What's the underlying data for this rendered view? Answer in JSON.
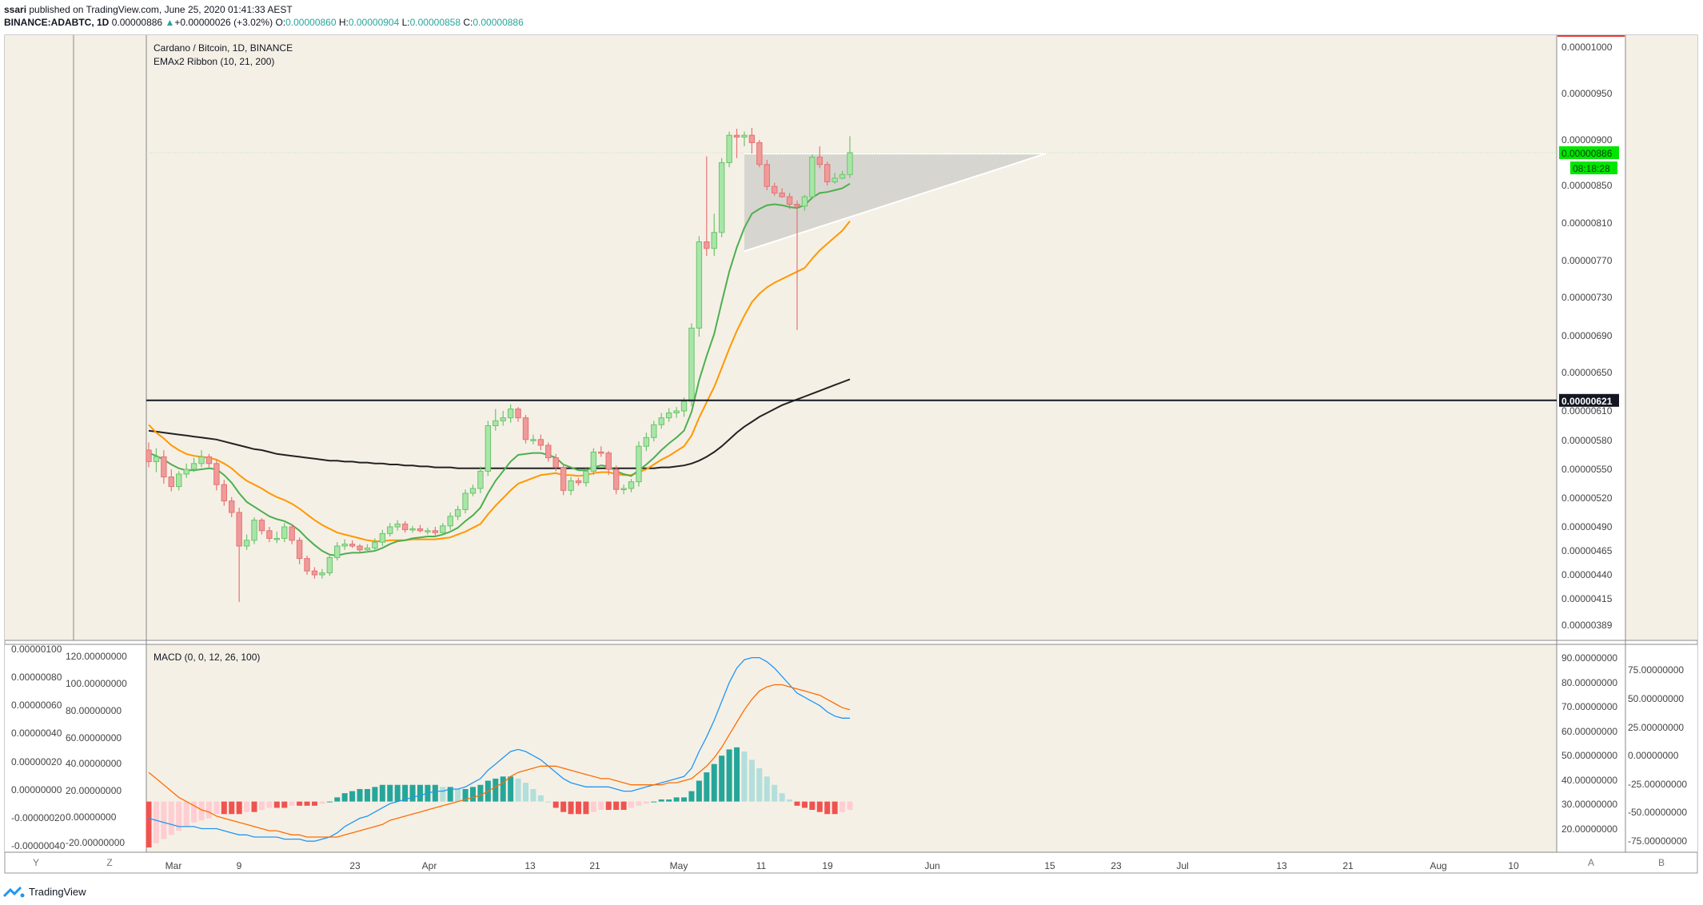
{
  "header": {
    "publisher": "ssari",
    "published_line": " published on TradingView.com, June 25, 2020 01:41:33 AEST",
    "symbol": "BINANCE:ADABTC, 1D",
    "last": "0.00000886",
    "change": "+0.00000026 (+3.02%)",
    "o_label": "O:",
    "o": "0.00000860",
    "h_label": "H:",
    "h": "0.00000904",
    "l_label": "L:",
    "l": "0.00000858",
    "c_label": "C:",
    "c": "0.00000886"
  },
  "legend": {
    "title": "Cardano / Bitcoin, 1D, BINANCE",
    "indicator": "EMAx2 Ribbon (10, 21, 200)",
    "macd": "MACD (0, 0, 12, 26, 100)"
  },
  "scale_buttons": {
    "y": "Y",
    "z": "Z",
    "a": "A",
    "b": "B"
  },
  "price_tags": {
    "last": "0.00000886",
    "countdown": "08:18:28",
    "level": "0.00000621"
  },
  "footer": {
    "brand": "TradingView"
  },
  "colors": {
    "up": "#26a69a",
    "down": "#ef5350",
    "ema10": "#4caf50",
    "ema21": "#ff9800",
    "ema200": "#222222",
    "macd": "#2196f3",
    "signal": "#ff6d00",
    "hist_up_strong": "#26a69a",
    "hist_up_weak": "#b2dfdb",
    "hist_down_strong": "#ef5350",
    "hist_down_weak": "#ffcdd2",
    "pane_bg": "#f5f0e6"
  },
  "chart_data": {
    "type": "candlestick",
    "x_ticks": [
      "Mar",
      "9",
      "23",
      "Apr",
      "13",
      "21",
      "May",
      "11",
      "19",
      "Jun",
      "15",
      "23",
      "Jul",
      "13",
      "21",
      "Aug",
      "10"
    ],
    "price_axis": {
      "ticks": [
        "0.00001000",
        "0.00000950",
        "0.00000900",
        "0.00000850",
        "0.00000810",
        "0.00000770",
        "0.00000730",
        "0.00000690",
        "0.00000650",
        "0.00000610",
        "0.00000580",
        "0.00000550",
        "0.00000520",
        "0.00000490",
        "0.00000465",
        "0.00000440",
        "0.00000415",
        "0.00000389"
      ],
      "range": [
        3.75e-06,
        1.01e-05
      ]
    },
    "left_axis_main": {
      "ticks": []
    },
    "candles": {
      "open": [
        570,
        558,
        563,
        542,
        532,
        545,
        550,
        556,
        563,
        556,
        534,
        517,
        505,
        470,
        476,
        497,
        486,
        478,
        478,
        490,
        476,
        457,
        444,
        440,
        442,
        458,
        470,
        472,
        470,
        466,
        468,
        474,
        483,
        490,
        493,
        487,
        488,
        486,
        486,
        484,
        491,
        501,
        508,
        525,
        530,
        548,
        595,
        600,
        603,
        612,
        603,
        581,
        581,
        575,
        562,
        552,
        528,
        538,
        536,
        548,
        568,
        567,
        550,
        529,
        530,
        537,
        574,
        583,
        596,
        603,
        608,
        610,
        620,
        698,
        790,
        783,
        800,
        875,
        905,
        903,
        905,
        897,
        873,
        849,
        842,
        838,
        830,
        828,
        838,
        881,
        873,
        854,
        858,
        862
      ],
      "close": [
        558,
        563,
        542,
        532,
        545,
        550,
        556,
        563,
        556,
        534,
        517,
        505,
        470,
        476,
        497,
        486,
        478,
        478,
        490,
        476,
        457,
        444,
        440,
        442,
        458,
        470,
        472,
        470,
        466,
        468,
        474,
        483,
        490,
        493,
        487,
        488,
        486,
        486,
        484,
        491,
        501,
        508,
        525,
        530,
        548,
        595,
        600,
        603,
        612,
        603,
        581,
        581,
        575,
        562,
        552,
        528,
        538,
        536,
        548,
        568,
        567,
        550,
        529,
        530,
        537,
        574,
        583,
        596,
        603,
        608,
        610,
        620,
        698,
        790,
        783,
        800,
        875,
        905,
        903,
        905,
        897,
        873,
        849,
        842,
        838,
        830,
        828,
        838,
        881,
        873,
        854,
        858,
        862,
        886
      ],
      "high": [
        578,
        572,
        570,
        550,
        548,
        556,
        562,
        570,
        566,
        560,
        539,
        521,
        510,
        482,
        500,
        499,
        490,
        485,
        494,
        493,
        479,
        460,
        448,
        446,
        462,
        474,
        477,
        476,
        472,
        472,
        478,
        487,
        494,
        497,
        496,
        491,
        492,
        489,
        490,
        494,
        505,
        512,
        529,
        534,
        553,
        600,
        612,
        610,
        617,
        614,
        606,
        586,
        586,
        578,
        566,
        556,
        542,
        541,
        551,
        572,
        574,
        569,
        554,
        534,
        540,
        579,
        588,
        600,
        608,
        613,
        614,
        624,
        703,
        796,
        882,
        820,
        880,
        909,
        912,
        909,
        913,
        900,
        878,
        853,
        847,
        842,
        834,
        840,
        884,
        893,
        876,
        864,
        866,
        904
      ],
      "low": [
        552,
        547,
        535,
        527,
        528,
        541,
        547,
        552,
        552,
        528,
        512,
        500,
        412,
        466,
        472,
        482,
        474,
        473,
        474,
        472,
        451,
        440,
        436,
        436,
        439,
        455,
        466,
        468,
        463,
        463,
        465,
        470,
        480,
        486,
        484,
        484,
        484,
        482,
        479,
        481,
        487,
        497,
        504,
        522,
        525,
        543,
        590,
        595,
        598,
        599,
        577,
        576,
        570,
        558,
        548,
        523,
        523,
        533,
        532,
        544,
        563,
        544,
        524,
        524,
        526,
        532,
        569,
        579,
        592,
        599,
        603,
        604,
        615,
        689,
        775,
        775,
        795,
        870,
        880,
        893,
        885,
        870,
        845,
        839,
        837,
        825,
        696,
        823,
        835,
        869,
        850,
        852,
        857,
        858
      ]
    },
    "ema": {
      "ema10": [
        567,
        564,
        560,
        555,
        551,
        549,
        549,
        550,
        551,
        550,
        544,
        536,
        525,
        516,
        511,
        506,
        501,
        498,
        496,
        492,
        486,
        478,
        471,
        465,
        461,
        460,
        462,
        463,
        463,
        464,
        465,
        468,
        472,
        475,
        476,
        478,
        479,
        480,
        480,
        482,
        485,
        489,
        496,
        502,
        510,
        525,
        538,
        548,
        558,
        565,
        566,
        567,
        567,
        565,
        562,
        555,
        552,
        549,
        549,
        552,
        554,
        553,
        548,
        545,
        543,
        549,
        555,
        562,
        570,
        577,
        583,
        590,
        609,
        642,
        668,
        692,
        725,
        758,
        784,
        805,
        820,
        825,
        829,
        830,
        829,
        827,
        826,
        829,
        837,
        842,
        843,
        845,
        847,
        852
      ],
      "ema21": [
        596,
        588,
        582,
        575,
        570,
        566,
        564,
        563,
        562,
        560,
        556,
        551,
        544,
        538,
        534,
        530,
        525,
        521,
        518,
        514,
        509,
        503,
        497,
        492,
        488,
        484,
        482,
        480,
        478,
        476,
        475,
        475,
        476,
        476,
        476,
        477,
        477,
        477,
        477,
        478,
        479,
        482,
        485,
        489,
        493,
        503,
        512,
        520,
        528,
        535,
        538,
        541,
        544,
        545,
        546,
        544,
        544,
        543,
        544,
        546,
        547,
        547,
        545,
        544,
        544,
        547,
        550,
        555,
        560,
        564,
        569,
        574,
        585,
        603,
        619,
        635,
        655,
        676,
        695,
        711,
        725,
        734,
        741,
        746,
        750,
        754,
        758,
        762,
        772,
        781,
        788,
        795,
        802,
        812
      ],
      "ema200": [
        590,
        589,
        588,
        587,
        586,
        585,
        584,
        583,
        582,
        581,
        579,
        577,
        575,
        573,
        571,
        570,
        568,
        566,
        565,
        564,
        563,
        562,
        561,
        560,
        559,
        559,
        558,
        558,
        557,
        557,
        556,
        556,
        555,
        555,
        554,
        554,
        553,
        553,
        552,
        552,
        552,
        551,
        551,
        551,
        551,
        551,
        551,
        551,
        551,
        551,
        551,
        551,
        551,
        551,
        551,
        551,
        551,
        551,
        551,
        551,
        551,
        551,
        551,
        551,
        551,
        551,
        551,
        551,
        552,
        552,
        553,
        554,
        556,
        559,
        563,
        568,
        574,
        581,
        588,
        594,
        599,
        604,
        608,
        612,
        616,
        619,
        622,
        625,
        628,
        631,
        634,
        637,
        640,
        643
      ]
    },
    "hline": {
      "value": 621
    },
    "triangle": {
      "top": 885,
      "apex_day": 119,
      "start_day": 79,
      "bottom_start": 780
    },
    "macd": {
      "axis_left": [
        "0.00000100",
        "0.00000080",
        "0.00000060",
        "0.00000040",
        "0.00000020",
        "0.00000000",
        "-0.00000020",
        "-0.00000040"
      ],
      "axis_left2": [
        "120.00000000",
        "100.00000000",
        "80.00000000",
        "60.00000000",
        "40.00000000",
        "20.00000000",
        "0.00000000",
        "-20.00000000"
      ],
      "axis_right": [
        "90.00000000",
        "80.00000000",
        "70.00000000",
        "60.00000000",
        "50.00000000",
        "40.00000000",
        "30.00000000",
        "20.00000000"
      ],
      "axis_right2": [
        "75.00000000",
        "50.00000000",
        "25.00000000",
        "0.00000000",
        "-25.00000000",
        "-50.00000000",
        "-75.00000000"
      ],
      "macd": [
        -8,
        -9,
        -10,
        -11,
        -12,
        -12,
        -12,
        -13,
        -13,
        -13,
        -14,
        -15,
        -16,
        -16,
        -17,
        -17,
        -17,
        -17,
        -18,
        -18,
        -18,
        -19,
        -19,
        -18,
        -17,
        -15,
        -12,
        -10,
        -8,
        -7,
        -5,
        -3,
        -1,
        0,
        1,
        2,
        3,
        4,
        5,
        5,
        6,
        6,
        7,
        9,
        11,
        15,
        18,
        21,
        24,
        25,
        24,
        22,
        20,
        17,
        14,
        11,
        9,
        8,
        7,
        7,
        7,
        7,
        6,
        5,
        5,
        6,
        7,
        8,
        9,
        10,
        11,
        12,
        16,
        24,
        31,
        39,
        48,
        57,
        64,
        68,
        69,
        69,
        67,
        64,
        60,
        56,
        52,
        50,
        48,
        46,
        43,
        41,
        40,
        40
      ],
      "signal": [
        14,
        11,
        8,
        5,
        2,
        0,
        -2,
        -4,
        -5,
        -7,
        -8,
        -9,
        -10,
        -11,
        -12,
        -13,
        -14,
        -14,
        -15,
        -16,
        -16,
        -17,
        -17,
        -17,
        -17,
        -17,
        -16,
        -15,
        -14,
        -13,
        -12,
        -11,
        -9,
        -8,
        -7,
        -6,
        -5,
        -4,
        -3,
        -2,
        -1,
        0,
        1,
        2,
        3,
        5,
        7,
        9,
        12,
        14,
        15,
        16,
        17,
        17,
        17,
        16,
        15,
        14,
        13,
        12,
        11,
        11,
        10,
        9,
        8,
        8,
        8,
        8,
        8,
        9,
        9,
        10,
        11,
        14,
        17,
        21,
        26,
        32,
        38,
        44,
        49,
        53,
        55,
        56,
        56,
        55,
        54,
        53,
        52,
        51,
        49,
        47,
        45,
        44
      ]
    }
  }
}
